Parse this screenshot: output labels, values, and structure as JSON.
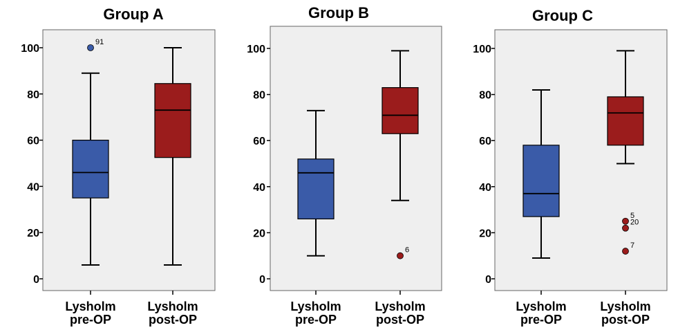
{
  "chart_data": [
    {
      "type": "boxplot",
      "title": "Group A",
      "categories": [
        "Lysholm pre-OP",
        "Lysholm post-OP"
      ],
      "category_lines": [
        [
          "Lysholm",
          "pre-OP"
        ],
        [
          "Lysholm",
          "post-OP"
        ]
      ],
      "colors": [
        "#3a5ba8",
        "#9b1c1c"
      ],
      "ylim": [
        0,
        100
      ],
      "yticks": [
        "0",
        "20",
        "40",
        "60",
        "80",
        "100"
      ],
      "boxes": [
        {
          "min": 6,
          "q1": 35,
          "median": 46,
          "q3": 60,
          "max": 89,
          "outliers": [
            {
              "value": 100,
              "label": "91"
            }
          ]
        },
        {
          "min": 6,
          "q1": 52.5,
          "median": 73,
          "q3": 84.5,
          "max": 100,
          "outliers": []
        }
      ]
    },
    {
      "type": "boxplot",
      "title": "Group B",
      "categories": [
        "Lysholm pre-OP",
        "Lysholm post-OP"
      ],
      "category_lines": [
        [
          "Lysholm",
          "pre-OP"
        ],
        [
          "Lysholm",
          "post-OP"
        ]
      ],
      "colors": [
        "#3a5ba8",
        "#9b1c1c"
      ],
      "ylim": [
        0,
        100
      ],
      "yticks": [
        "0",
        "20",
        "40",
        "60",
        "80",
        "100"
      ],
      "boxes": [
        {
          "min": 10,
          "q1": 26,
          "median": 46,
          "q3": 52,
          "max": 73,
          "outliers": []
        },
        {
          "min": 34,
          "q1": 63,
          "median": 71,
          "q3": 83,
          "max": 99,
          "outliers": [
            {
              "value": 10,
              "label": "6"
            }
          ]
        }
      ]
    },
    {
      "type": "boxplot",
      "title": "Group C",
      "categories": [
        "Lysholm pre-OP",
        "Lysholm post-OP"
      ],
      "category_lines": [
        [
          "Lysholm",
          "pre-OP"
        ],
        [
          "Lysholm",
          "post-OP"
        ]
      ],
      "colors": [
        "#3a5ba8",
        "#9b1c1c"
      ],
      "ylim": [
        0,
        100
      ],
      "yticks": [
        "0",
        "20",
        "40",
        "60",
        "80",
        "100"
      ],
      "boxes": [
        {
          "min": 9,
          "q1": 27,
          "median": 37,
          "q3": 58,
          "max": 82,
          "outliers": []
        },
        {
          "min": 50,
          "q1": 58,
          "median": 72,
          "q3": 79,
          "max": 99,
          "outliers": [
            {
              "value": 25,
              "label": "5"
            },
            {
              "value": 22,
              "label": "20"
            },
            {
              "value": 12,
              "label": "7"
            }
          ]
        }
      ]
    }
  ]
}
